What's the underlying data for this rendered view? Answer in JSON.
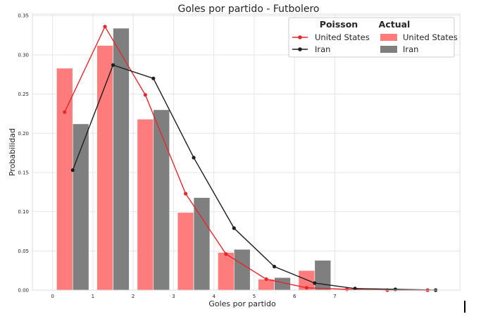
{
  "colors": {
    "us_bar": "#ff7c7c",
    "iran_bar": "#7f7f7f",
    "us_line": "#e8262c",
    "iran_line": "#1e1e1e",
    "grid": "#e6e6e6",
    "frame": "#dddddd"
  },
  "chart_data": {
    "type": "bar",
    "title": "Goles por partido - Futbolero",
    "xlabel": "Goles por partido",
    "ylabel": "Probabilidad",
    "xlim": [
      -0.5,
      10.1
    ],
    "ylim": [
      0,
      0.352
    ],
    "grid": true,
    "legend_position": "top-right",
    "x_ticks": [
      "0",
      "1",
      "2",
      "3",
      "4",
      "5",
      "6",
      "7"
    ],
    "y_ticks": [
      "0.00",
      "0.05",
      "0.10",
      "0.15",
      "0.20",
      "0.25",
      "0.30",
      "0.35"
    ],
    "legend": {
      "poisson_title": "Poisson",
      "actual_title": "Actual",
      "poisson_entries": [
        "United States",
        "Iran"
      ],
      "actual_entries": [
        "United States",
        "Iran"
      ]
    },
    "bar_series": [
      {
        "name": "United States",
        "x": [
          0,
          1,
          2,
          3,
          4,
          5,
          6
        ],
        "values": [
          0.283,
          0.312,
          0.218,
          0.099,
          0.048,
          0.014,
          0.025
        ]
      },
      {
        "name": "Iran",
        "x": [
          0,
          1,
          2,
          3,
          4,
          5,
          6
        ],
        "values": [
          0.212,
          0.334,
          0.23,
          0.118,
          0.052,
          0.016,
          0.038
        ]
      }
    ],
    "line_series": [
      {
        "name": "United States",
        "x": [
          0.3,
          1.3,
          2.3,
          3.3,
          4.3,
          5.3,
          6.3,
          7.3,
          8.3,
          9.3
        ],
        "values": [
          0.227,
          0.336,
          0.249,
          0.123,
          0.046,
          0.014,
          0.003,
          0.001,
          0.0,
          0.0
        ]
      },
      {
        "name": "Iran",
        "x": [
          0.5,
          1.5,
          2.5,
          3.5,
          4.5,
          5.5,
          6.5,
          7.5,
          8.5,
          9.5
        ],
        "values": [
          0.153,
          0.287,
          0.27,
          0.169,
          0.079,
          0.03,
          0.009,
          0.002,
          0.001,
          0.0
        ]
      }
    ]
  }
}
